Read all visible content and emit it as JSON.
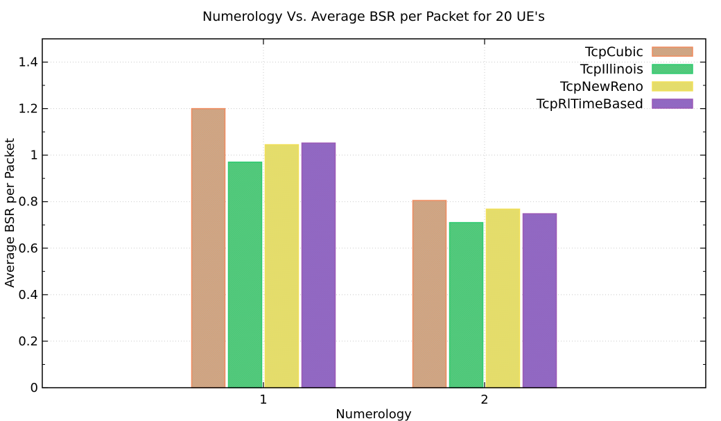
{
  "chart_data": {
    "type": "bar",
    "title": "Numerology Vs. Average BSR per Packet for 20 UE's",
    "xlabel": "Numerology",
    "ylabel": "Average BSR per Packet",
    "categories": [
      "1",
      "2"
    ],
    "ylim": [
      0,
      1.5
    ],
    "yticks": [
      "0",
      "0.2",
      "0.4",
      "0.6",
      "0.8",
      "1",
      "1.2",
      "1.4"
    ],
    "grid": true,
    "legend_position": "top-right",
    "series": [
      {
        "name": "TcpCubic",
        "values": [
          1.2,
          0.805
        ],
        "color": "#f08a5d",
        "fill": "#c9a98a"
      },
      {
        "name": "TcpIllinois",
        "values": [
          0.97,
          0.71
        ],
        "color": "#2ecc71",
        "fill": "#57c87d"
      },
      {
        "name": "TcpNewReno",
        "values": [
          1.045,
          0.768
        ],
        "color": "#f1e05a",
        "fill": "#e2dc6e"
      },
      {
        "name": "TcpRlTimeBased",
        "values": [
          1.052,
          0.748
        ],
        "color": "#9b59b6",
        "fill": "#8f6ac4"
      }
    ]
  },
  "legend_labels": [
    "TcpCubic",
    "TcpIllinois",
    "TcpNewReno",
    "TcpRlTimeBased"
  ]
}
